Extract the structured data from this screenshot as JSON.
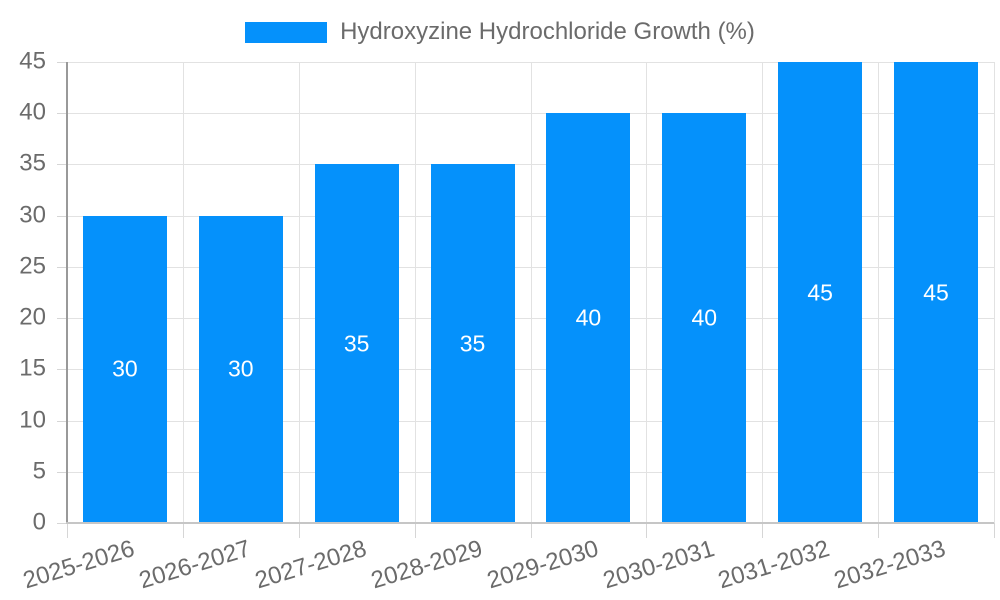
{
  "chart_data": {
    "type": "bar",
    "series_name": "Hydroxyzine Hydrochloride Growth (%)",
    "categories": [
      "2025-2026",
      "2026-2027",
      "2027-2028",
      "2028-2029",
      "2029-2030",
      "2030-2031",
      "2031-2032",
      "2032-2033"
    ],
    "values": [
      30,
      30,
      35,
      35,
      40,
      40,
      45,
      45
    ],
    "bar_labels": [
      "30",
      "30",
      "35",
      "35",
      "40",
      "40",
      "45",
      "45"
    ],
    "xlabel": "",
    "ylabel": "",
    "ylim": [
      0,
      45
    ],
    "yticks": [
      0,
      5,
      10,
      15,
      20,
      25,
      30,
      35,
      40,
      45
    ],
    "grid": true,
    "legend_position": "top",
    "colors": {
      "bar": "#0591fb",
      "bar_label": "#ffffff",
      "axis_text": "#6b6b6b",
      "grid_line": "#e2e2e2",
      "axis_line": "#999999",
      "zero_line": "#c6c6c6",
      "tick_line": "#d6d6d6"
    }
  }
}
